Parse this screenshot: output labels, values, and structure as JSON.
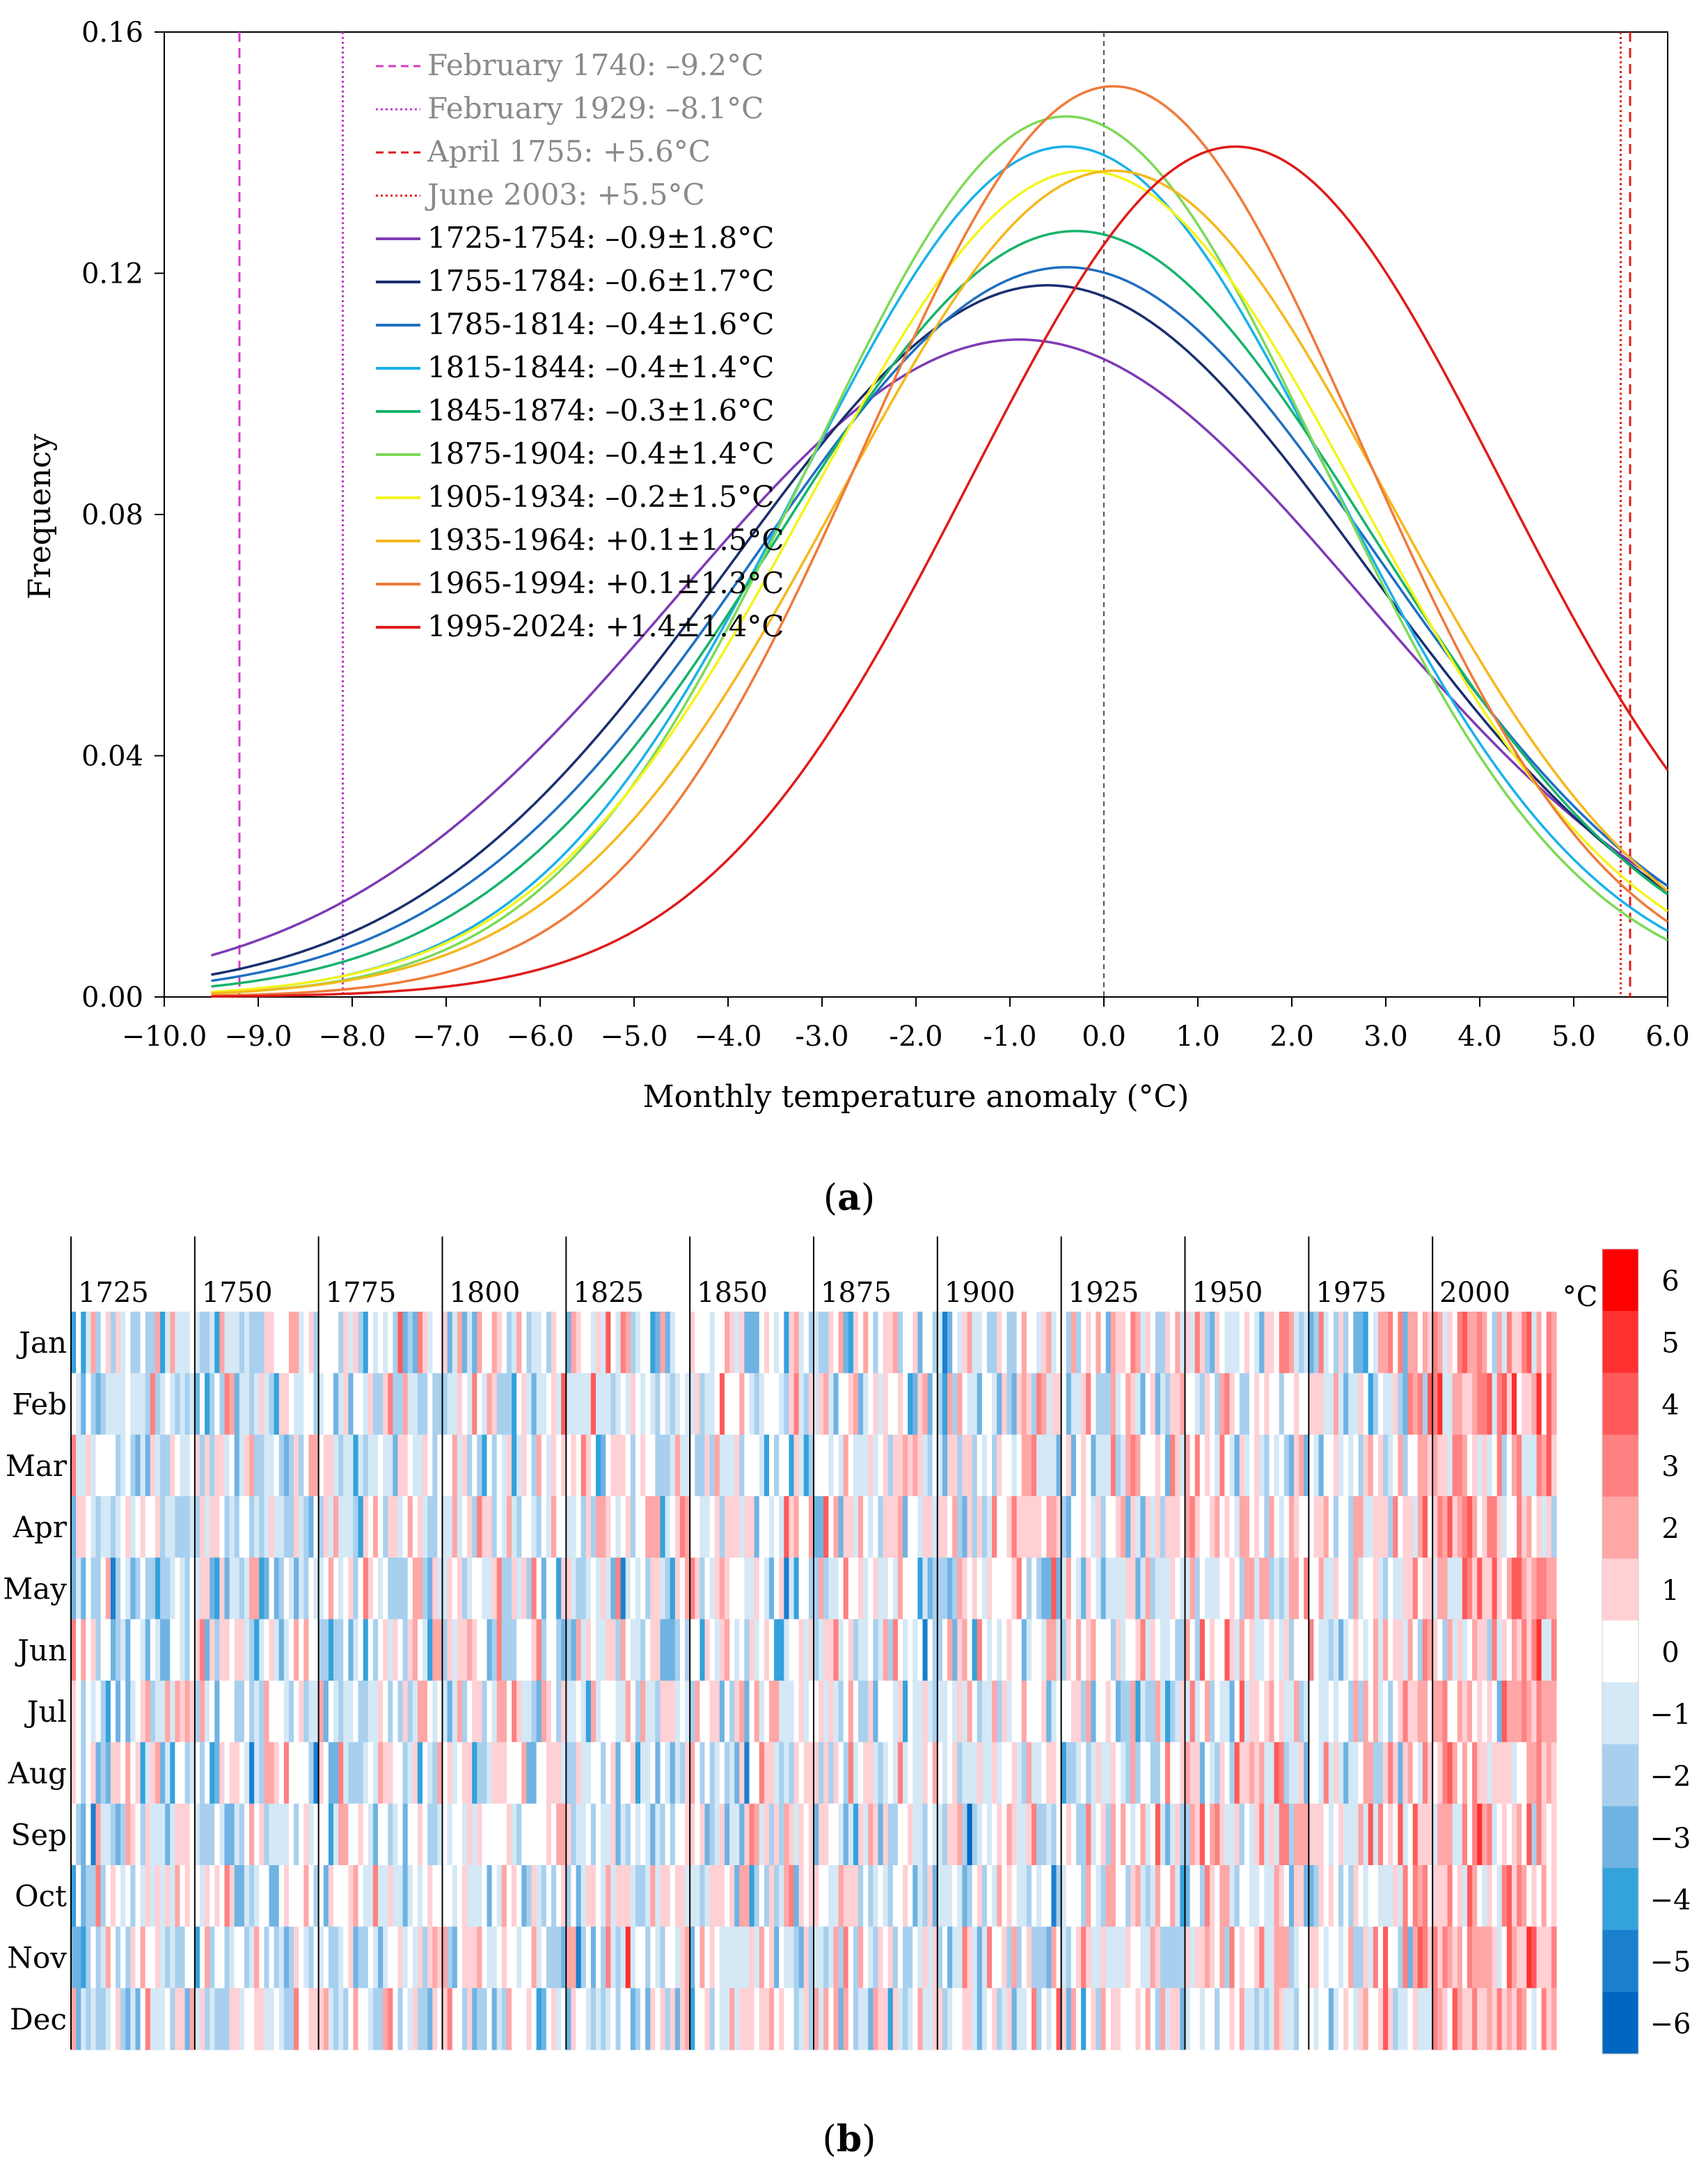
{
  "chart_data": [
    {
      "type": "line",
      "panel_label": "(a)",
      "panel_letter": "a",
      "xlabel": "Monthly temperature anomaly (°C)",
      "ylabel": "Frequency",
      "xlim": [
        -10.0,
        6.0
      ],
      "ylim": [
        0.0,
        0.16
      ],
      "xticks": [
        -10.0,
        -9.0,
        -8.0,
        -7.0,
        -6.0,
        -5.0,
        -4.0,
        -3.0,
        -2.0,
        -1.0,
        0.0,
        1.0,
        2.0,
        3.0,
        4.0,
        5.0,
        6.0
      ],
      "xtick_labels": [
        "−10.0",
        "−9.0",
        "−8.0",
        "−7.0",
        "−6.0",
        "−5.0",
        "−4.0",
        "-3.0",
        "-2.0",
        "-1.0",
        "0.0",
        "1.0",
        "2.0",
        "3.0",
        "4.0",
        "5.0",
        "6.0"
      ],
      "yticks": [
        0.0,
        0.04,
        0.08,
        0.12,
        0.16
      ],
      "ytick_labels": [
        "0.00",
        "0.04",
        "0.08",
        "0.12",
        "0.16"
      ],
      "reference_line": {
        "x": 0.0,
        "style": "dashed",
        "color": "#555555"
      },
      "extreme_lines": [
        {
          "label": "February 1740: –9.2°C",
          "x": -9.2,
          "style": "dashed",
          "color": "#d63cc4"
        },
        {
          "label": "February 1929: –8.1°C",
          "x": -8.1,
          "style": "dotted",
          "color": "#c03ad0"
        },
        {
          "label": "April 1755: +5.6°C",
          "x": 5.6,
          "style": "dashed",
          "color": "#e01b1b"
        },
        {
          "label": "June 2003: +5.5°C",
          "x": 5.5,
          "style": "dotted",
          "color": "#e01b1b"
        }
      ],
      "series": [
        {
          "name": "1725-1754: –0.9±1.8°C",
          "mean": -0.9,
          "peak": 0.109,
          "color": "#7e3bb5"
        },
        {
          "name": "1755-1784: –0.6±1.7°C",
          "mean": -0.6,
          "peak": 0.118,
          "color": "#1a2f6e"
        },
        {
          "name": "1785-1814: –0.4±1.6°C",
          "mean": -0.4,
          "peak": 0.121,
          "color": "#1f6fc1"
        },
        {
          "name": "1815-1844: –0.4±1.4°C",
          "mean": -0.4,
          "peak": 0.141,
          "color": "#1ab1ea"
        },
        {
          "name": "1845-1874: –0.3±1.6°C",
          "mean": -0.3,
          "peak": 0.127,
          "color": "#17b36b"
        },
        {
          "name": "1875-1904: –0.4±1.4°C",
          "mean": -0.4,
          "peak": 0.146,
          "color": "#7ed957"
        },
        {
          "name": "1905-1934: –0.2±1.5°C",
          "mean": -0.2,
          "peak": 0.137,
          "color": "#f4f41c"
        },
        {
          "name": "1935-1964: +0.1±1.5°C",
          "mean": 0.1,
          "peak": 0.137,
          "color": "#f5b81c"
        },
        {
          "name": "1965-1994: +0.1±1.3°C",
          "mean": 0.1,
          "peak": 0.151,
          "color": "#f07a3a"
        },
        {
          "name": "1995-2024: +1.4±1.4°C",
          "mean": 1.4,
          "peak": 0.141,
          "color": "#e01b1b"
        }
      ]
    },
    {
      "type": "heatmap",
      "panel_label": "(b)",
      "panel_letter": "b",
      "year_range": [
        1725,
        2024
      ],
      "year_labels": [
        "1725",
        "1750",
        "1775",
        "1800",
        "1825",
        "1850",
        "1875",
        "1900",
        "1925",
        "1950",
        "1975",
        "2000"
      ],
      "months": [
        "Jan",
        "Feb",
        "Mar",
        "Apr",
        "May",
        "Jun",
        "Jul",
        "Aug",
        "Sep",
        "Oct",
        "Nov",
        "Dec"
      ],
      "colorbar": {
        "unit": "°C",
        "tick_labels": [
          "6",
          "5",
          "4",
          "3",
          "2",
          "1",
          "0",
          "−1",
          "−2",
          "−3",
          "−4",
          "−5",
          "−6"
        ],
        "colors": [
          "#ff0000",
          "#ff3030",
          "#ff5a5a",
          "#ff8080",
          "#ffa6a6",
          "#ffd0d4",
          "#ffffff",
          "#d4e8f6",
          "#a8d0ee",
          "#6fb3e3",
          "#34a2dc",
          "#1a7fcf",
          "#0066c0"
        ]
      },
      "decade_trend_means": [
        -0.9,
        -0.6,
        -0.4,
        -0.4,
        -0.3,
        -0.4,
        -0.2,
        0.1,
        0.1,
        1.4
      ]
    }
  ]
}
